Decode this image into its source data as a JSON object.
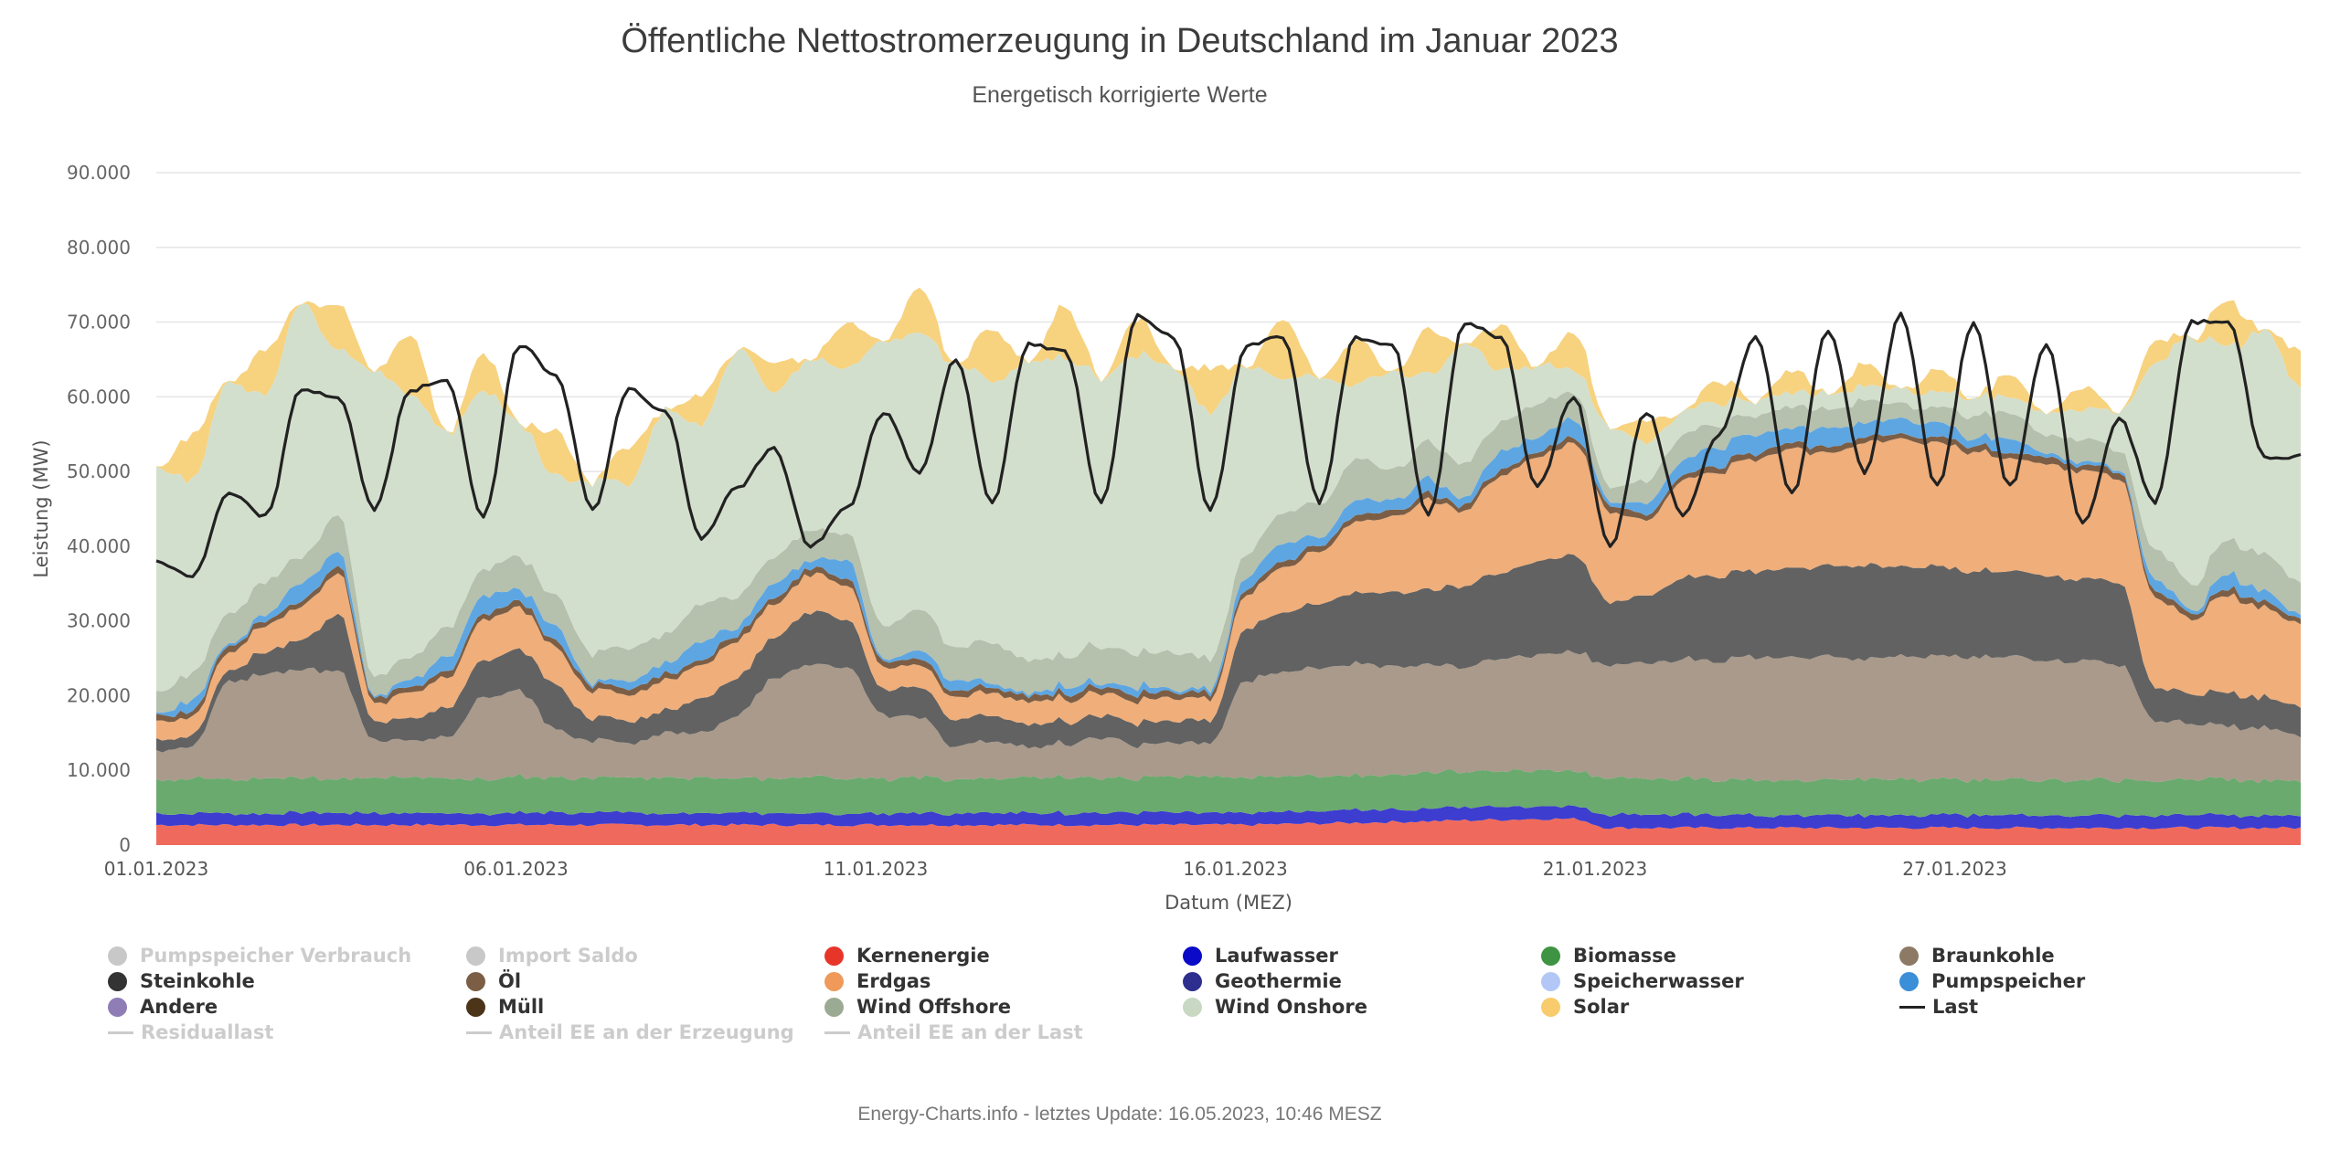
{
  "header": {
    "title": "Öffentliche Nettostromerzeugung in Deutschland im Januar 2023",
    "subtitle": "Energetisch korrigierte Werte"
  },
  "footer": {
    "text": "Energy-Charts.info - letztes Update: 16.05.2023, 10:46 MESZ"
  },
  "chart_data": {
    "type": "area",
    "stacked": true,
    "title": "Öffentliche Nettostromerzeugung in Deutschland im Januar 2023",
    "subtitle": "Energetisch korrigierte Werte",
    "xlabel": "Datum (MEZ)",
    "ylabel": "Leistung (MW)",
    "ylim": [
      0,
      90000
    ],
    "xlim_days": [
      0,
      29.8
    ],
    "grid": true,
    "yticks": [
      {
        "value": 0,
        "label": "0"
      },
      {
        "value": 10000,
        "label": "10.000"
      },
      {
        "value": 20000,
        "label": "20.000"
      },
      {
        "value": 30000,
        "label": "30.000"
      },
      {
        "value": 40000,
        "label": "40.000"
      },
      {
        "value": 50000,
        "label": "50.000"
      },
      {
        "value": 60000,
        "label": "60.000"
      },
      {
        "value": 70000,
        "label": "70.000"
      },
      {
        "value": 80000,
        "label": "80.000"
      },
      {
        "value": 90000,
        "label": "90.000"
      }
    ],
    "xticks": [
      {
        "day": 0,
        "label": "01.01.2023"
      },
      {
        "day": 5,
        "label": "06.01.2023"
      },
      {
        "day": 10,
        "label": "11.01.2023"
      },
      {
        "day": 15,
        "label": "16.01.2023"
      },
      {
        "day": 20,
        "label": "21.01.2023"
      },
      {
        "day": 25,
        "label": "27.01.2023"
      }
    ],
    "x_step_days": 0.5,
    "series": [
      {
        "name": "Kernenergie",
        "color": "#ef6a5c",
        "values": [
          2.7,
          2.7,
          2.7,
          2.7,
          2.7,
          2.7,
          2.7,
          2.7,
          2.7,
          2.7,
          2.7,
          2.7,
          2.7,
          2.7,
          2.7,
          2.7,
          2.7,
          2.7,
          2.7,
          2.7,
          2.7,
          2.7,
          2.7,
          2.7,
          2.7,
          2.7,
          2.7,
          2.7,
          2.7,
          2.7,
          2.7,
          2.8,
          2.9,
          3.0,
          3.1,
          3.2,
          3.3,
          3.4,
          3.5,
          3.5,
          2.3,
          2.3,
          2.3,
          2.3,
          2.3,
          2.3,
          2.3,
          2.3,
          2.3,
          2.3,
          2.3,
          2.3,
          2.3,
          2.3,
          2.3,
          2.3,
          2.3,
          2.3,
          2.3,
          2.3
        ]
      },
      {
        "name": "Laufwasser",
        "color": "#3d3dcf",
        "values": [
          1.6,
          1.6,
          1.6,
          1.6,
          1.6,
          1.6,
          1.6,
          1.6,
          1.6,
          1.6,
          1.6,
          1.6,
          1.6,
          1.6,
          1.6,
          1.6,
          1.6,
          1.6,
          1.6,
          1.6,
          1.6,
          1.6,
          1.6,
          1.6,
          1.6,
          1.6,
          1.6,
          1.6,
          1.6,
          1.6,
          1.7,
          1.7,
          1.7,
          1.7,
          1.7,
          1.7,
          1.7,
          1.7,
          1.7,
          1.7,
          1.8,
          1.8,
          1.8,
          1.8,
          1.7,
          1.7,
          1.7,
          1.7,
          1.7,
          1.7,
          1.7,
          1.7,
          1.7,
          1.7,
          1.7,
          1.7,
          1.7,
          1.7,
          1.6,
          1.6
        ]
      },
      {
        "name": "Biomasse",
        "color": "#6aaa6e",
        "values": [
          4.6,
          4.7,
          4.6,
          4.8,
          4.7,
          4.6,
          4.7,
          4.8,
          4.6,
          4.7,
          4.8,
          4.7,
          4.6,
          4.7,
          4.8,
          4.7,
          4.6,
          4.7,
          4.8,
          4.7,
          4.7,
          4.8,
          4.7,
          4.6,
          4.7,
          4.8,
          4.7,
          4.6,
          4.7,
          4.8,
          4.7,
          4.8,
          4.7,
          4.6,
          4.7,
          4.8,
          4.7,
          4.8,
          4.8,
          4.7,
          4.9,
          4.8,
          4.8,
          4.7,
          4.8,
          4.8,
          4.7,
          4.8,
          4.8,
          4.7,
          4.8,
          4.8,
          4.7,
          4.8,
          4.7,
          4.6,
          4.7,
          4.8,
          4.7,
          4.7
        ]
      },
      {
        "name": "Braunkohle",
        "color": "#a99a8b",
        "values": [
          4.0,
          4.2,
          13.0,
          14.0,
          14.5,
          14.5,
          5.0,
          5.0,
          5.5,
          11.0,
          11.5,
          6.5,
          5.0,
          4.5,
          6.0,
          6.0,
          8.5,
          13.5,
          15.0,
          15.0,
          8.5,
          8.0,
          4.5,
          5.0,
          4.0,
          4.5,
          5.5,
          4.5,
          4.5,
          4.5,
          13.0,
          14.0,
          14.5,
          15.0,
          14.5,
          14.5,
          14.0,
          15.0,
          15.5,
          16.0,
          15.0,
          15.5,
          16.0,
          16.0,
          16.5,
          16.5,
          16.5,
          16.0,
          16.5,
          16.5,
          16.5,
          16.5,
          16.0,
          16.0,
          15.5,
          8.0,
          7.5,
          7.0,
          7.0,
          6.0
        ]
      },
      {
        "name": "Steinkohle",
        "color": "#626262",
        "values": [
          1.5,
          1.5,
          1.5,
          3.0,
          4.0,
          7.5,
          2.5,
          3.0,
          4.0,
          5.0,
          5.5,
          6.0,
          3.0,
          3.0,
          3.0,
          4.5,
          5.0,
          5.5,
          7.0,
          6.5,
          3.5,
          4.0,
          3.5,
          3.5,
          3.0,
          3.0,
          3.0,
          3.0,
          3.0,
          3.0,
          7.0,
          8.0,
          8.5,
          9.5,
          10.0,
          10.0,
          11.0,
          11.5,
          12.5,
          13.0,
          8.5,
          9.0,
          11.0,
          11.5,
          11.5,
          12.0,
          12.0,
          12.5,
          12.0,
          12.0,
          11.5,
          11.5,
          11.5,
          11.0,
          11.0,
          4.5,
          4.0,
          4.5,
          4.0,
          4.0
        ]
      },
      {
        "name": "Erdgas",
        "color": "#efae7a",
        "values": [
          2.5,
          2.5,
          2.5,
          3.5,
          4.5,
          5.5,
          2.5,
          3.5,
          4.0,
          5.5,
          5.5,
          5.0,
          3.5,
          3.5,
          4.0,
          4.5,
          5.0,
          4.5,
          5.0,
          4.5,
          3.0,
          3.0,
          3.0,
          3.0,
          3.0,
          3.0,
          3.0,
          3.0,
          3.0,
          3.0,
          4.5,
          6.0,
          7.0,
          9.5,
          10.0,
          12.0,
          10.0,
          13.0,
          14.0,
          15.0,
          12.0,
          10.0,
          13.0,
          14.0,
          15.0,
          16.0,
          15.0,
          16.5,
          17.0,
          16.5,
          16.0,
          15.0,
          15.0,
          14.5,
          14.0,
          12.0,
          10.0,
          13.0,
          12.0,
          11.0
        ]
      },
      {
        "name": "Öl",
        "color": "#7b5e45",
        "values": [
          0.8,
          0.8,
          0.8,
          0.8,
          0.8,
          0.8,
          0.8,
          0.8,
          0.8,
          0.8,
          0.8,
          0.8,
          0.8,
          0.8,
          0.8,
          0.8,
          0.8,
          0.8,
          0.8,
          0.8,
          0.8,
          0.8,
          0.8,
          0.8,
          0.8,
          0.8,
          0.8,
          0.8,
          0.8,
          0.8,
          0.8,
          0.8,
          0.8,
          0.8,
          0.8,
          0.8,
          0.8,
          0.8,
          0.8,
          0.8,
          0.8,
          0.8,
          0.8,
          0.8,
          0.8,
          0.8,
          0.8,
          0.8,
          0.8,
          0.8,
          0.8,
          0.8,
          0.8,
          0.8,
          0.8,
          0.8,
          0.8,
          0.8,
          0.8,
          0.8
        ]
      },
      {
        "name": "Pumpspeicher",
        "color": "#5ea6e2",
        "values": [
          0.2,
          1.5,
          0.3,
          0.8,
          2.5,
          2.0,
          0.2,
          1.0,
          2.0,
          2.5,
          1.5,
          2.0,
          0.3,
          1.0,
          1.5,
          2.5,
          1.0,
          2.0,
          1.0,
          2.5,
          0.3,
          1.0,
          1.5,
          0.5,
          0.3,
          1.0,
          0.5,
          1.0,
          0.3,
          0.5,
          1.5,
          2.5,
          1.0,
          2.0,
          1.5,
          2.0,
          1.0,
          2.5,
          2.0,
          2.5,
          0.5,
          1.5,
          2.0,
          2.5,
          2.5,
          2.0,
          2.5,
          2.0,
          2.0,
          2.0,
          1.0,
          2.0,
          0.5,
          0.5,
          0.3,
          1.5,
          0.5,
          2.0,
          1.5,
          0.5
        ]
      },
      {
        "name": "Wind Offshore",
        "color": "#b5c0ad",
        "values": [
          3.0,
          3.5,
          4.0,
          4.5,
          3.5,
          5.0,
          2.5,
          3.0,
          4.0,
          3.5,
          4.5,
          4.0,
          4.0,
          4.5,
          4.0,
          5.0,
          4.0,
          3.5,
          4.0,
          3.5,
          4.5,
          5.5,
          4.5,
          5.5,
          4.5,
          4.0,
          5.0,
          4.5,
          5.0,
          4.0,
          3.0,
          4.0,
          4.5,
          5.5,
          4.0,
          5.0,
          4.5,
          4.0,
          4.5,
          3.5,
          2.0,
          3.0,
          3.5,
          3.0,
          2.5,
          3.0,
          2.5,
          3.0,
          2.0,
          2.0,
          3.0,
          3.5,
          2.5,
          3.0,
          2.5,
          4.0,
          3.5,
          4.5,
          5.0,
          4.5
        ]
      },
      {
        "name": "Wind Onshore",
        "color": "#d3dfcd",
        "values": [
          30.0,
          26.0,
          31.0,
          25.0,
          34.0,
          22.0,
          41.0,
          35.0,
          26.0,
          24.0,
          18.0,
          16.0,
          23.0,
          22.0,
          30.0,
          24.0,
          33.0,
          22.0,
          23.0,
          22.0,
          38.0,
          37.0,
          38.0,
          35.0,
          40.0,
          40.0,
          36.0,
          40.0,
          38.0,
          33.0,
          25.0,
          18.0,
          17.0,
          10.0,
          13.0,
          9.0,
          16.0,
          7.0,
          5.0,
          3.0,
          8.0,
          5.0,
          3.0,
          3.0,
          2.0,
          2.0,
          2.0,
          2.0,
          2.0,
          2.0,
          2.5,
          2.0,
          3.0,
          4.0,
          5.0,
          25.0,
          33.0,
          26.0,
          30.0,
          26.0
        ]
      },
      {
        "name": "Solar",
        "color": "#f7d27f",
        "values": [
          0,
          6,
          0,
          6,
          0,
          6,
          0,
          8,
          0,
          5,
          0,
          6,
          0,
          5,
          0,
          4,
          0,
          4,
          0,
          6,
          0,
          6,
          0,
          7,
          0,
          7,
          0,
          5,
          0,
          6,
          0,
          8,
          0,
          6,
          0,
          6,
          0,
          6,
          0,
          5,
          0,
          3,
          0,
          3,
          0,
          3,
          0,
          3,
          0,
          3,
          0,
          3,
          0,
          3,
          0,
          3,
          0,
          6,
          0,
          5
        ]
      }
    ],
    "lines": [
      {
        "name": "Last",
        "color": "#222222",
        "values": [
          38,
          36,
          47,
          44,
          61,
          60,
          45,
          61,
          62,
          44,
          67,
          63,
          45,
          61,
          58,
          41,
          48,
          53,
          40,
          45,
          58,
          50,
          65,
          46,
          67,
          66,
          46,
          71,
          68,
          45,
          67,
          68,
          46,
          68,
          67,
          44,
          70,
          68,
          48,
          60,
          40,
          58,
          44,
          55,
          68,
          47,
          69,
          50,
          71,
          48,
          70,
          48,
          67,
          43,
          57,
          46,
          70,
          70,
          52,
          52
        ]
      }
    ],
    "legend": {
      "placement": "bottom",
      "items": [
        {
          "name": "Pumpspeicher Verbrauch",
          "color": "#c8c8c8",
          "marker": "dot",
          "visible": false
        },
        {
          "name": "Import Saldo",
          "color": "#c8c8c8",
          "marker": "dot",
          "visible": false
        },
        {
          "name": "Kernenergie",
          "color": "#e8352a",
          "marker": "dot",
          "visible": true
        },
        {
          "name": "Laufwasser",
          "color": "#0a0ac8",
          "marker": "dot",
          "visible": true
        },
        {
          "name": "Biomasse",
          "color": "#3e9442",
          "marker": "dot",
          "visible": true
        },
        {
          "name": "Braunkohle",
          "color": "#8c7a64",
          "marker": "dot",
          "visible": true
        },
        {
          "name": "Steinkohle",
          "color": "#333333",
          "marker": "dot",
          "visible": true
        },
        {
          "name": "Öl",
          "color": "#7b5e45",
          "marker": "dot",
          "visible": true
        },
        {
          "name": "Erdgas",
          "color": "#ef9a5a",
          "marker": "dot",
          "visible": true
        },
        {
          "name": "Geothermie",
          "color": "#2e2e8e",
          "marker": "dot",
          "visible": true
        },
        {
          "name": "Speicherwasser",
          "color": "#b3c7f7",
          "marker": "dot",
          "visible": true
        },
        {
          "name": "Pumpspeicher",
          "color": "#3b8ed8",
          "marker": "dot",
          "visible": true
        },
        {
          "name": "Andere",
          "color": "#8f7db5",
          "marker": "dot",
          "visible": true
        },
        {
          "name": "Müll",
          "color": "#4c3419",
          "marker": "dot",
          "visible": true
        },
        {
          "name": "Wind Offshore",
          "color": "#9bab93",
          "marker": "dot",
          "visible": true
        },
        {
          "name": "Wind Onshore",
          "color": "#c8d8c3",
          "marker": "dot",
          "visible": true
        },
        {
          "name": "Solar",
          "color": "#f8cc6c",
          "marker": "dot",
          "visible": true
        },
        {
          "name": "Last",
          "color": "#222222",
          "marker": "line",
          "visible": true
        },
        {
          "name": "Residuallast",
          "color": "#cccccc",
          "marker": "line",
          "visible": false
        },
        {
          "name": "Anteil EE an der Erzeugung",
          "color": "#cccccc",
          "marker": "line",
          "visible": false
        },
        {
          "name": "Anteil EE an der Last",
          "color": "#cccccc",
          "marker": "line",
          "visible": false
        }
      ]
    }
  }
}
